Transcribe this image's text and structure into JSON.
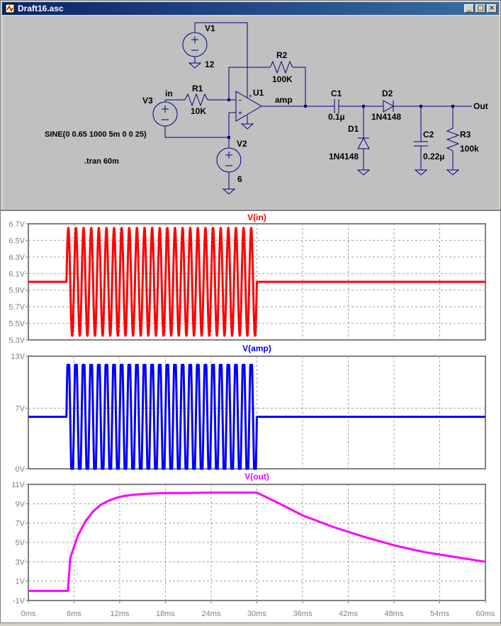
{
  "window": {
    "title": "Draft16.asc",
    "buttons": {
      "minimize": "_",
      "maximize": "□",
      "close": "×"
    }
  },
  "schematic": {
    "labels": {
      "V1": "V1",
      "V1_value": "12",
      "R2": "R2",
      "R2_value": "100K",
      "U1": "U1",
      "amp": "amp",
      "in": "in",
      "V3": "V3",
      "R1": "R1",
      "R1_value": "10K",
      "C1": "C1",
      "C1_value": "0.1µ",
      "D2": "D2",
      "D2_value": "1N4148",
      "D1": "D1",
      "D1_value": "1N4148",
      "Out": "Out",
      "C2": "C2",
      "C2_value": "0.22µ",
      "R3": "R3",
      "R3_value": "100k",
      "V2": "V2",
      "V2_value": "6",
      "sine_directive": "SINE(0 0.65 1000 5m 0 0 25)",
      "tran_directive": ".tran 60m",
      "plus": "+",
      "minus": "−"
    }
  },
  "chart_data": [
    {
      "type": "line",
      "title": "V(in)",
      "color": "#ff0000",
      "ylim": [
        5.3,
        6.7
      ],
      "yticks": [
        "6.7V",
        "6.5V",
        "6.3V",
        "6.1V",
        "5.9V",
        "5.7V",
        "5.5V",
        "5.3V"
      ],
      "ytick_values": [
        6.7,
        6.5,
        6.3,
        6.1,
        5.9,
        5.7,
        5.5,
        5.3
      ],
      "series": [
        {
          "name": "V(in)",
          "offset": 6.0,
          "amplitude": 0.65,
          "frequency_hz": 1000,
          "start_ms": 5,
          "cycles": 25
        }
      ]
    },
    {
      "type": "line",
      "title": "V(amp)",
      "color": "#0000ff",
      "ylim": [
        0,
        13
      ],
      "yticks": [
        "13V",
        "7V",
        "0V"
      ],
      "ytick_values": [
        13,
        7,
        0
      ],
      "series": [
        {
          "name": "V(amp)",
          "offset": 6.0,
          "high": 12.0,
          "low": 0.0,
          "frequency_hz": 1000,
          "start_ms": 5,
          "cycles": 25
        }
      ]
    },
    {
      "type": "line",
      "title": "V(out)",
      "color": "#ff00ff",
      "ylim": [
        -1,
        11
      ],
      "yticks": [
        "11V",
        "9V",
        "7V",
        "5V",
        "3V",
        "1V",
        "-1V"
      ],
      "ytick_values": [
        11,
        9,
        7,
        5,
        3,
        1,
        -1
      ],
      "xticks": [
        "0ms",
        "6ms",
        "12ms",
        "18ms",
        "24ms",
        "30ms",
        "36ms",
        "42ms",
        "48ms",
        "54ms",
        "60ms"
      ],
      "xtick_values": [
        0,
        6,
        12,
        18,
        24,
        30,
        36,
        42,
        48,
        54,
        60
      ],
      "xlim": [
        0,
        60
      ],
      "series": [
        {
          "name": "V(out)",
          "x": [
            0,
            5.2,
            5.5,
            6.5,
            7.5,
            8.5,
            9.5,
            10.5,
            11.5,
            12.5,
            14,
            16,
            18,
            20,
            24,
            28,
            30,
            33,
            36,
            40,
            44,
            48,
            52,
            56,
            60
          ],
          "y": [
            0,
            0,
            3.4,
            5.7,
            7.2,
            8.2,
            8.9,
            9.3,
            9.6,
            9.8,
            9.95,
            10.05,
            10.1,
            10.1,
            10.15,
            10.15,
            10.15,
            9.0,
            7.8,
            6.6,
            5.6,
            4.7,
            4.0,
            3.5,
            3.0
          ]
        }
      ]
    }
  ]
}
